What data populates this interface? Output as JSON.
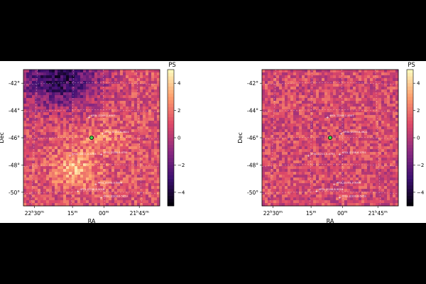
{
  "chart_data": [
    {
      "type": "heatmap",
      "panel": "left",
      "xlabel": "RA",
      "ylabel": "Dec",
      "x_ticks": [
        {
          "h": "22",
          "m": "30"
        },
        {
          "h": "",
          "m": "15"
        },
        {
          "h": "",
          "m": "00"
        },
        {
          "h": "21",
          "m": "45"
        }
      ],
      "y_ticks": [
        "-42°",
        "-44°",
        "-46°",
        "-48°",
        "-50°"
      ],
      "colorbar": {
        "label": "PS",
        "ticks": [
          "4",
          "2",
          "0",
          "−2",
          "−4"
        ],
        "range": [
          -5,
          5
        ]
      },
      "cmap": [
        "#000004",
        "#3b0f70",
        "#8c2981",
        "#de4968",
        "#fe9f6d",
        "#fcfdbf"
      ],
      "grid": true,
      "features": "left map shows a dark (negative) region toward upper-left and a bright (positive) patch near the lower center",
      "sources": [
        {
          "label": "4FGL J2209.1-4507"
        },
        {
          "label": "4FGL J2159.6-4621"
        },
        {
          "label": "4FGL J2211.0-4754"
        },
        {
          "label": "4FGL J2158.6-4751"
        },
        {
          "label": "4FGL J2203.3-5006"
        },
        {
          "label": "4FGL J2208.8-5018"
        },
        {
          "label": "4FGL J2200.0-5059"
        }
      ],
      "target_color": "#3fd14a"
    },
    {
      "type": "heatmap",
      "panel": "right",
      "xlabel": "RA",
      "ylabel": "Dec",
      "x_ticks": [
        {
          "h": "22",
          "m": "30"
        },
        {
          "h": "",
          "m": "15"
        },
        {
          "h": "",
          "m": "00"
        },
        {
          "h": "21",
          "m": "45"
        }
      ],
      "y_ticks": [
        "-42°",
        "-44°",
        "-46°",
        "-48°",
        "-50°"
      ],
      "colorbar": {
        "label": "PS",
        "ticks": [
          "4",
          "2",
          "0",
          "−2",
          "−4"
        ],
        "range": [
          -5,
          5
        ]
      },
      "cmap": [
        "#000004",
        "#3b0f70",
        "#8c2981",
        "#de4968",
        "#fe9f6d",
        "#fcfdbf"
      ],
      "grid": true,
      "features": "right map is more uniform residual with fewer extremes",
      "sources": [
        {
          "label": "4FGL J2209.1-4507"
        },
        {
          "label": "4FGL J2159.6-4621"
        },
        {
          "label": "4FGL J2211.0-4754"
        },
        {
          "label": "4FGL J2158.6-4751"
        },
        {
          "label": "4FGL J2203.3-5006"
        },
        {
          "label": "4FGL J2208.8-5018"
        },
        {
          "label": "4FGL J2200.0-5059"
        }
      ],
      "target_color": "#3fd14a"
    }
  ]
}
